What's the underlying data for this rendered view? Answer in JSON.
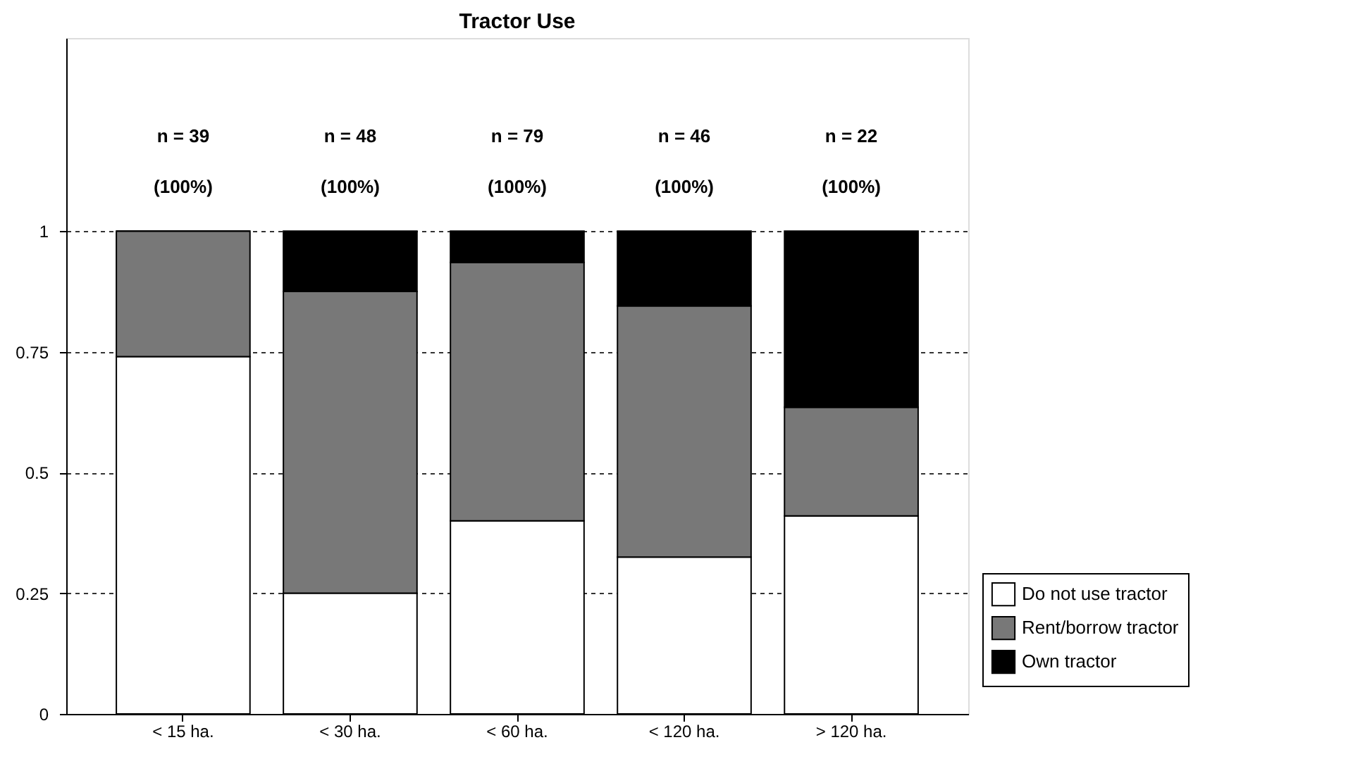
{
  "chart_data": {
    "type": "bar",
    "title": "Tractor Use",
    "stacked": true,
    "categories": [
      "< 15 ha.",
      "< 30 ha.",
      "< 60 ha.",
      "< 120 ha.",
      "> 120 ha."
    ],
    "series": [
      {
        "name": "Do not use tractor",
        "color": "#ffffff",
        "values": [
          0.74,
          0.25,
          0.4,
          0.325,
          0.41
        ]
      },
      {
        "name": "Rent/borrow tractor",
        "color": "#787878",
        "values": [
          0.26,
          0.625,
          0.535,
          0.52,
          0.225
        ]
      },
      {
        "name": "Own tractor",
        "color": "#000000",
        "values": [
          0,
          0.125,
          0.065,
          0.155,
          0.365
        ]
      }
    ],
    "ylim": [
      0,
      1.4
    ],
    "yticks": [
      0,
      0.25,
      0.5,
      0.75,
      1
    ],
    "grid": "y",
    "legend": "bottom right",
    "annotations": [
      "n = 39",
      "n = 48",
      "n = 79",
      "n = 46",
      "n = 22",
      "(100%)",
      "(100%)",
      "(100%)",
      "(100%)",
      "(100%)"
    ]
  }
}
